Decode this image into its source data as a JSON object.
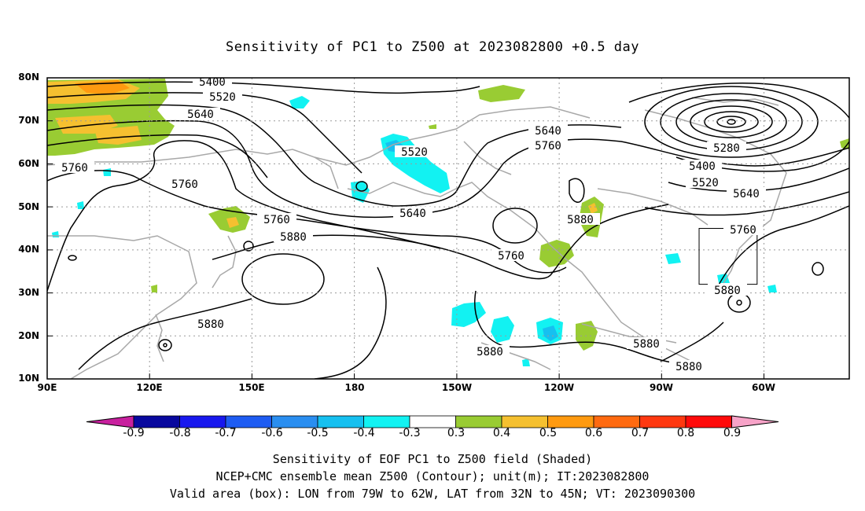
{
  "title": "Sensitivity of PC1 to Z500 at 2023082800 +0.5 day",
  "lat_labels": [
    "80N",
    "70N",
    "60N",
    "50N",
    "40N",
    "30N",
    "20N",
    "10N"
  ],
  "lon_labels": [
    "90E",
    "120E",
    "150E",
    "180",
    "150W",
    "120W",
    "90W",
    "60W"
  ],
  "map": {
    "lon_range": [
      90,
      325
    ],
    "lat_range": [
      10,
      80
    ],
    "projection": "cylindrical equidistant",
    "gridlines": "dotted",
    "box": {
      "lon": [
        281,
        298
      ],
      "lat": [
        32,
        45
      ]
    }
  },
  "contour_labels": [
    "5400",
    "5520",
    "5640",
    "5760",
    "5760",
    "5760",
    "5880",
    "5880",
    "5520",
    "5640",
    "5760",
    "5640",
    "5760",
    "5280",
    "5400",
    "5520",
    "5640",
    "5760",
    "5880",
    "5880",
    "5880",
    "5880",
    "5880"
  ],
  "colorbar": {
    "labels": [
      "-0.9",
      "-0.8",
      "-0.7",
      "-0.6",
      "-0.5",
      "-0.4",
      "-0.3",
      "0.3",
      "0.4",
      "0.5",
      "0.6",
      "0.7",
      "0.8",
      "0.9"
    ],
    "colors": [
      "#08089e",
      "#1818ee",
      "#1e5cf2",
      "#2a8ef0",
      "#16c0f0",
      "#12f2f2",
      "#ffffff",
      "#99cc33",
      "#f5c030",
      "#ff9a10",
      "#ff6a10",
      "#ff3810",
      "#ff0a0a"
    ],
    "low_end_color": "#c8209e",
    "high_end_color": "#f7a3c8"
  },
  "footer": {
    "line1": "Sensitivity of EOF PC1 to Z500 field (Shaded)",
    "line2": "NCEP+CMC ensemble mean Z500 (Contour); unit(m); IT:2023082800",
    "line3": "Valid area (box): LON from 79W to 62W, LAT from 32N to 45N; VT: 2023090300"
  }
}
